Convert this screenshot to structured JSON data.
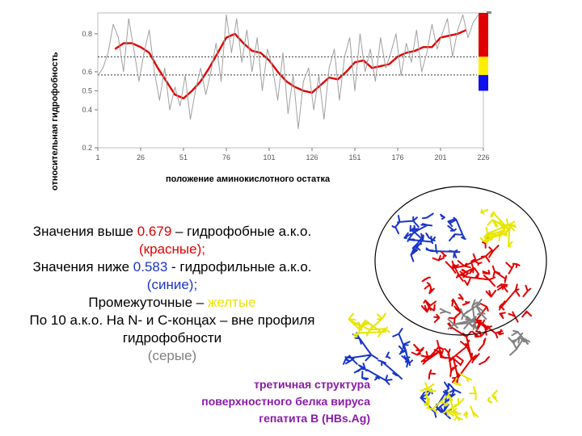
{
  "chart_data": {
    "type": "line",
    "ylabel": "относительная гидрофобность",
    "xlabel": "положение аминокислотного остатка",
    "x_ticks": [
      1,
      26,
      51,
      76,
      101,
      126,
      151,
      176,
      201,
      226
    ],
    "y_ticks": [
      0.2,
      0.4,
      0.5,
      0.6,
      0.8
    ],
    "y_tick_labels": [
      "0.2",
      "0.4",
      "0.5",
      "0.6",
      "0.8"
    ],
    "xlim": [
      1,
      226
    ],
    "ylim": [
      0.2,
      0.91
    ],
    "thresholds": [
      0.679,
      0.583
    ],
    "grid": false,
    "series": [
      {
        "color": "#e00000",
        "style": "smoothed",
        "x": [
          11,
          16,
          21,
          26,
          31,
          36,
          41,
          46,
          51,
          56,
          61,
          66,
          71,
          76,
          81,
          86,
          91,
          96,
          101,
          106,
          111,
          116,
          121,
          126,
          131,
          136,
          141,
          146,
          151,
          156,
          161,
          166,
          171,
          176,
          181,
          186,
          191,
          196,
          201,
          206,
          211,
          216
        ],
        "y": [
          0.72,
          0.75,
          0.75,
          0.73,
          0.7,
          0.62,
          0.55,
          0.48,
          0.46,
          0.5,
          0.55,
          0.62,
          0.7,
          0.78,
          0.8,
          0.75,
          0.71,
          0.7,
          0.66,
          0.6,
          0.55,
          0.52,
          0.5,
          0.49,
          0.53,
          0.57,
          0.56,
          0.6,
          0.65,
          0.66,
          0.62,
          0.63,
          0.64,
          0.68,
          0.7,
          0.71,
          0.73,
          0.73,
          0.78,
          0.79,
          0.8,
          0.82
        ]
      },
      {
        "color": "#a0a0a0",
        "style": "raw",
        "x": [
          1,
          4,
          7,
          10,
          13,
          16,
          19,
          22,
          25,
          28,
          31,
          34,
          37,
          40,
          43,
          46,
          49,
          52,
          55,
          58,
          61,
          64,
          67,
          70,
          73,
          76,
          79,
          82,
          85,
          88,
          91,
          94,
          97,
          100,
          103,
          106,
          109,
          112,
          115,
          118,
          121,
          124,
          127,
          130,
          133,
          136,
          139,
          142,
          145,
          148,
          151,
          154,
          157,
          160,
          163,
          166,
          169,
          172,
          175,
          178,
          181,
          184,
          187,
          190,
          193,
          196,
          199,
          202,
          205,
          208,
          211,
          214,
          217,
          220,
          223
        ],
        "y": [
          0.58,
          0.62,
          0.7,
          0.85,
          0.78,
          0.6,
          0.88,
          0.72,
          0.55,
          0.7,
          0.82,
          0.6,
          0.45,
          0.62,
          0.4,
          0.52,
          0.42,
          0.58,
          0.35,
          0.5,
          0.62,
          0.48,
          0.6,
          0.75,
          0.55,
          0.9,
          0.7,
          0.88,
          0.65,
          0.82,
          0.6,
          0.78,
          0.5,
          0.72,
          0.62,
          0.45,
          0.7,
          0.38,
          0.58,
          0.3,
          0.55,
          0.62,
          0.4,
          0.58,
          0.35,
          0.62,
          0.72,
          0.45,
          0.68,
          0.78,
          0.5,
          0.8,
          0.6,
          0.72,
          0.55,
          0.78,
          0.62,
          0.7,
          0.8,
          0.58,
          0.75,
          0.65,
          0.82,
          0.6,
          0.7,
          0.85,
          0.72,
          0.8,
          0.88,
          0.68,
          0.82,
          0.9,
          0.78,
          0.86,
          0.9
        ]
      }
    ],
    "color_bar": [
      {
        "color": "#e00000",
        "from": 0.679,
        "to": 0.91
      },
      {
        "color": "#ffee00",
        "from": 0.583,
        "to": 0.679
      },
      {
        "color": "#1010ee",
        "from": 0.5,
        "to": 0.583
      }
    ]
  },
  "legend": {
    "line1_prefix": "Значения выше ",
    "line1_value": "0.679",
    "line1_suffix": " – гидрофобные а.к.о.",
    "line2": "(красные);",
    "line3_prefix": "Значения ниже ",
    "line3_value": "0.583",
    "line3_suffix": "  - гидрофильные а.к.о.",
    "line4": "(синие);",
    "line5_prefix": "Промежуточные – ",
    "line5_value": "желтые",
    "line6": "По 10 а.к.о. На N- и С-концах – вне профиля",
    "line7": "гидрофобности",
    "line8": "(серые)"
  },
  "caption": {
    "line1": "третичная структура",
    "line2": "поверхностного белка вируса",
    "line3": "гепатита B (HBs.Ag)"
  },
  "colors": {
    "red": "#e00000",
    "blue": "#1a35c8",
    "yellow": "#e6e600",
    "gray": "#808080",
    "purple": "#8a1aa8"
  }
}
